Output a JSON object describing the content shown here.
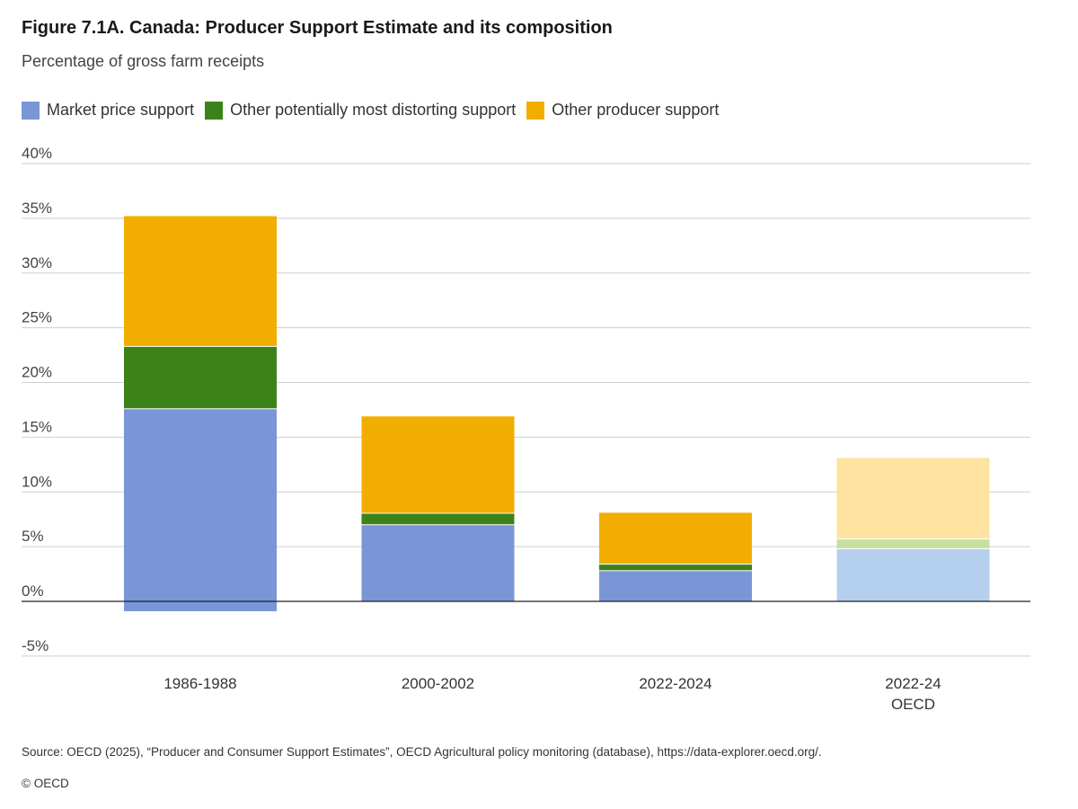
{
  "chart_data": {
    "type": "bar",
    "stacked": true,
    "title": "Figure 7.1A. Canada: Producer Support Estimate and its composition",
    "subtitle": "Percentage of gross farm receipts",
    "categories": [
      [
        "1986-1988"
      ],
      [
        "2000-2002"
      ],
      [
        "2022-2024"
      ],
      [
        "2022-24",
        "OECD"
      ]
    ],
    "series": [
      {
        "name": "Market price support",
        "color": "#7a96d6",
        "highlight_color": "#b5cfee",
        "values": [
          17.6,
          7.0,
          2.8,
          4.8
        ],
        "negative_values": [
          -0.9,
          0,
          0,
          0
        ]
      },
      {
        "name": "Other potentially most distorting support",
        "color": "#3b8219",
        "highlight_color": "#c6e0a0",
        "values": [
          5.7,
          1.05,
          0.6,
          0.9
        ]
      },
      {
        "name": "Other producer support",
        "color": "#f2ae00",
        "highlight_color": "#fde39f",
        "values": [
          11.9,
          8.85,
          4.7,
          7.4
        ]
      }
    ],
    "lighter_categories": [
      3
    ],
    "ylim": [
      -5,
      40
    ],
    "yticks": [
      -5,
      0,
      5,
      10,
      15,
      20,
      25,
      30,
      35,
      40
    ],
    "ytick_format": "%",
    "grid": true,
    "legend_position": "top-left"
  },
  "footer": {
    "source": "Source: OECD (2025), “Producer and Consumer Support Estimates”, OECD Agricultural policy monitoring (database), https://data-explorer.oecd.org/.",
    "copyright": "© OECD"
  }
}
